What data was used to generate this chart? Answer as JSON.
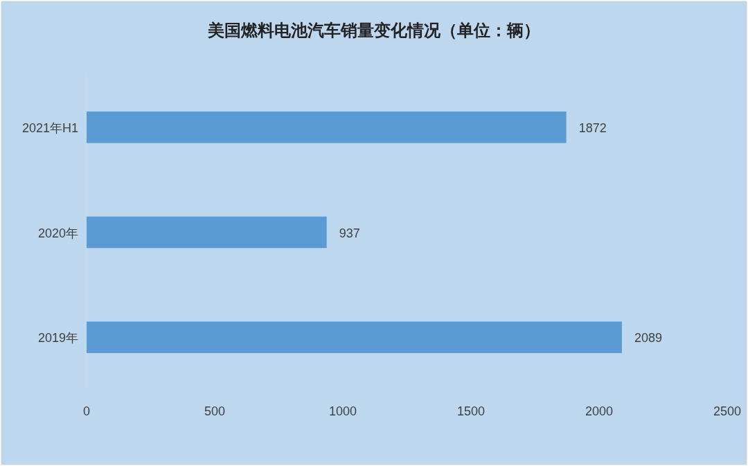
{
  "chart_data": {
    "type": "bar",
    "orientation": "horizontal",
    "title": "美国燃料电池汽车销量变化情况（单位：辆）",
    "categories": [
      "2021年H1",
      "2020年",
      "2019年"
    ],
    "values": [
      1872,
      937,
      2089
    ],
    "color": "#5b9bd5",
    "xlim": [
      0,
      2500
    ],
    "xticks": [
      0,
      500,
      1000,
      1500,
      2000,
      2500
    ],
    "data_labels": true
  }
}
